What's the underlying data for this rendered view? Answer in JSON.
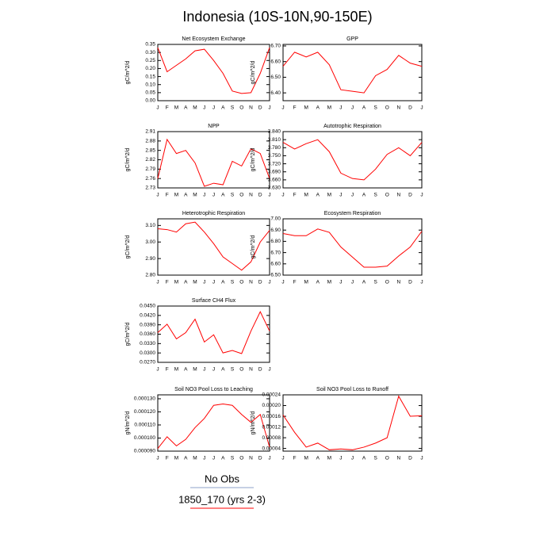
{
  "title": "Indonesia (10S-10N,90-150E)",
  "legend": [
    {
      "name": "No Obs",
      "color": "#8ca0c8"
    },
    {
      "name": "1850_170 (yrs 2-3)",
      "color": "#ff0000"
    }
  ],
  "chart_data": [
    {
      "type": "line",
      "title": "Net Ecosystem Exchange",
      "y_label": "gC/m^2/d",
      "color": "#ff0000",
      "categories": [
        "J",
        "F",
        "M",
        "A",
        "M",
        "J",
        "J",
        "A",
        "S",
        "O",
        "N",
        "D",
        "J"
      ],
      "values": [
        0.33,
        0.18,
        0.22,
        0.26,
        0.31,
        0.32,
        0.25,
        0.17,
        0.06,
        0.045,
        0.05,
        0.17,
        0.33
      ],
      "ylim": [
        0,
        0.35
      ],
      "yticks": [
        {
          "value": 0,
          "label": "0.00"
        },
        0.05,
        {
          "value": 0.1,
          "label": "0.10"
        },
        0.15,
        {
          "value": 0.2,
          "label": "0.20"
        },
        0.25,
        {
          "value": 0.3,
          "label": "0.30"
        },
        0.35
      ]
    },
    {
      "type": "line",
      "title": "GPP",
      "y_label": "gC/m^2/d",
      "color": "#ff0000",
      "categories": [
        "J",
        "F",
        "M",
        "A",
        "M",
        "J",
        "J",
        "A",
        "S",
        "O",
        "N",
        "D",
        "J"
      ],
      "values": [
        6.57,
        6.66,
        6.63,
        6.66,
        6.58,
        6.42,
        6.41,
        6.4,
        6.51,
        6.55,
        6.64,
        6.59,
        6.57
      ],
      "ylim": [
        6.35,
        6.71
      ],
      "yticks": [
        {
          "value": 6.4,
          "label": "6.40"
        },
        {
          "value": 6.5,
          "label": "6.50"
        },
        {
          "value": 6.6,
          "label": "6.60"
        },
        {
          "value": 6.7,
          "label": "6.70"
        }
      ]
    },
    {
      "type": "line",
      "title": "NPP",
      "y_label": "gC/m^2/d",
      "color": "#ff0000",
      "categories": [
        "J",
        "F",
        "M",
        "A",
        "M",
        "J",
        "J",
        "A",
        "S",
        "O",
        "N",
        "D",
        "J"
      ],
      "values": [
        2.76,
        2.885,
        2.84,
        2.85,
        2.81,
        2.735,
        2.745,
        2.74,
        2.815,
        2.8,
        2.855,
        2.84,
        2.76
      ],
      "ylim": [
        2.73,
        2.91
      ],
      "yticks": [
        2.73,
        2.76,
        2.79,
        2.82,
        2.85,
        2.88,
        2.91
      ]
    },
    {
      "type": "line",
      "title": "Autotrophic Respiration",
      "y_label": "gC/m^2/d",
      "color": "#ff0000",
      "categories": [
        "J",
        "F",
        "M",
        "A",
        "M",
        "J",
        "J",
        "A",
        "S",
        "O",
        "N",
        "D",
        "J"
      ],
      "values": [
        3.8,
        3.775,
        3.795,
        3.81,
        3.765,
        3.685,
        3.665,
        3.66,
        3.7,
        3.755,
        3.78,
        3.75,
        3.8
      ],
      "ylim": [
        3.63,
        3.84
      ],
      "yticks": [
        {
          "value": 3.63,
          "label": "3.630"
        },
        {
          "value": 3.66,
          "label": "3.660"
        },
        {
          "value": 3.69,
          "label": "3.690"
        },
        {
          "value": 3.72,
          "label": "3.720"
        },
        {
          "value": 3.75,
          "label": "3.750"
        },
        {
          "value": 3.78,
          "label": "3.780"
        },
        {
          "value": 3.81,
          "label": "3.810"
        },
        {
          "value": 3.84,
          "label": "3.840"
        }
      ]
    },
    {
      "type": "line",
      "title": "Heterotrophic Respiration",
      "y_label": "gC/m^2/d",
      "color": "#ff0000",
      "categories": [
        "J",
        "F",
        "M",
        "A",
        "M",
        "J",
        "J",
        "A",
        "S",
        "O",
        "N",
        "D",
        "J"
      ],
      "values": [
        3.08,
        3.075,
        3.06,
        3.11,
        3.12,
        3.06,
        2.99,
        2.91,
        2.87,
        2.83,
        2.88,
        3.0,
        3.07
      ],
      "ylim": [
        2.8,
        3.14
      ],
      "yticks": [
        {
          "value": 2.8,
          "label": "2.80"
        },
        {
          "value": 2.9,
          "label": "2.90"
        },
        {
          "value": 3,
          "label": "3.00"
        },
        {
          "value": 3.1,
          "label": "3.10"
        }
      ]
    },
    {
      "type": "line",
      "title": "Ecosystem Respiration",
      "y_label": "gC/m^2/d",
      "color": "#ff0000",
      "categories": [
        "J",
        "F",
        "M",
        "A",
        "M",
        "J",
        "J",
        "A",
        "S",
        "O",
        "N",
        "D",
        "J"
      ],
      "values": [
        6.87,
        6.85,
        6.85,
        6.91,
        6.88,
        6.75,
        6.66,
        6.57,
        6.57,
        6.58,
        6.67,
        6.75,
        6.89
      ],
      "ylim": [
        6.5,
        7.0
      ],
      "yticks": [
        {
          "value": 6.5,
          "label": "6.50"
        },
        {
          "value": 6.6,
          "label": "6.60"
        },
        {
          "value": 6.7,
          "label": "6.70"
        },
        {
          "value": 6.8,
          "label": "6.80"
        },
        {
          "value": 6.9,
          "label": "6.90"
        },
        {
          "value": 7,
          "label": "7.00"
        }
      ]
    },
    {
      "type": "line",
      "title": "Surface CH4 Flux",
      "y_label": "gC/m^2/d",
      "color": "#ff0000",
      "categories": [
        "J",
        "F",
        "M",
        "A",
        "M",
        "J",
        "J",
        "A",
        "S",
        "O",
        "N",
        "D",
        "J"
      ],
      "values": [
        0.0365,
        0.0392,
        0.0345,
        0.0365,
        0.0408,
        0.0335,
        0.0358,
        0.03,
        0.0308,
        0.0298,
        0.037,
        0.0432,
        0.037
      ],
      "ylim": [
        0.027,
        0.045
      ],
      "yticks": [
        {
          "value": 0.027,
          "label": "0.0270"
        },
        {
          "value": 0.03,
          "label": "0.0300"
        },
        {
          "value": 0.033,
          "label": "0.0330"
        },
        {
          "value": 0.036,
          "label": "0.0360"
        },
        {
          "value": 0.039,
          "label": "0.0390"
        },
        {
          "value": 0.042,
          "label": "0.0420"
        },
        {
          "value": 0.045,
          "label": "0.0450"
        }
      ]
    },
    {
      "type": "line",
      "title": "Soil NO3 Pool Loss to Leaching",
      "y_label": "gN/m^2/d",
      "color": "#ff0000",
      "categories": [
        "J",
        "F",
        "M",
        "A",
        "M",
        "J",
        "J",
        "A",
        "S",
        "O",
        "N",
        "D",
        "J"
      ],
      "values": [
        9.2e-05,
        0.000101,
        9.4e-05,
        9.9e-05,
        0.000108,
        0.000115,
        0.000125,
        0.000126,
        0.000125,
        0.000118,
        0.000112,
        0.000118,
        9.3e-05
      ],
      "ylim": [
        9e-05,
        0.000133
      ],
      "yticks": [
        {
          "value": 9e-05,
          "label": "0.000090"
        },
        {
          "value": 0.0001,
          "label": "0.000100"
        },
        {
          "value": 0.00011,
          "label": "0.000110"
        },
        {
          "value": 0.00012,
          "label": "0.000120"
        },
        {
          "value": 0.00013,
          "label": "0.000130"
        }
      ]
    },
    {
      "type": "line",
      "title": "Soil NO3 Pool Loss to Runoff",
      "y_label": "gN/m^2/d",
      "color": "#ff0000",
      "categories": [
        "J",
        "F",
        "M",
        "A",
        "M",
        "J",
        "J",
        "A",
        "S",
        "O",
        "N",
        "D",
        "J"
      ],
      "values": [
        0.000165,
        0.0001,
        4.5e-05,
        6e-05,
        3.5e-05,
        3.8e-05,
        3.5e-05,
        4.5e-05,
        6e-05,
        8e-05,
        0.000235,
        0.00016,
        0.000162
      ],
      "ylim": [
        3e-05,
        0.00024
      ],
      "yticks": [
        4e-05,
        8e-05,
        0.00012,
        0.00016,
        {
          "value": 0.0002,
          "label": "0.00020"
        },
        0.00024
      ]
    }
  ]
}
